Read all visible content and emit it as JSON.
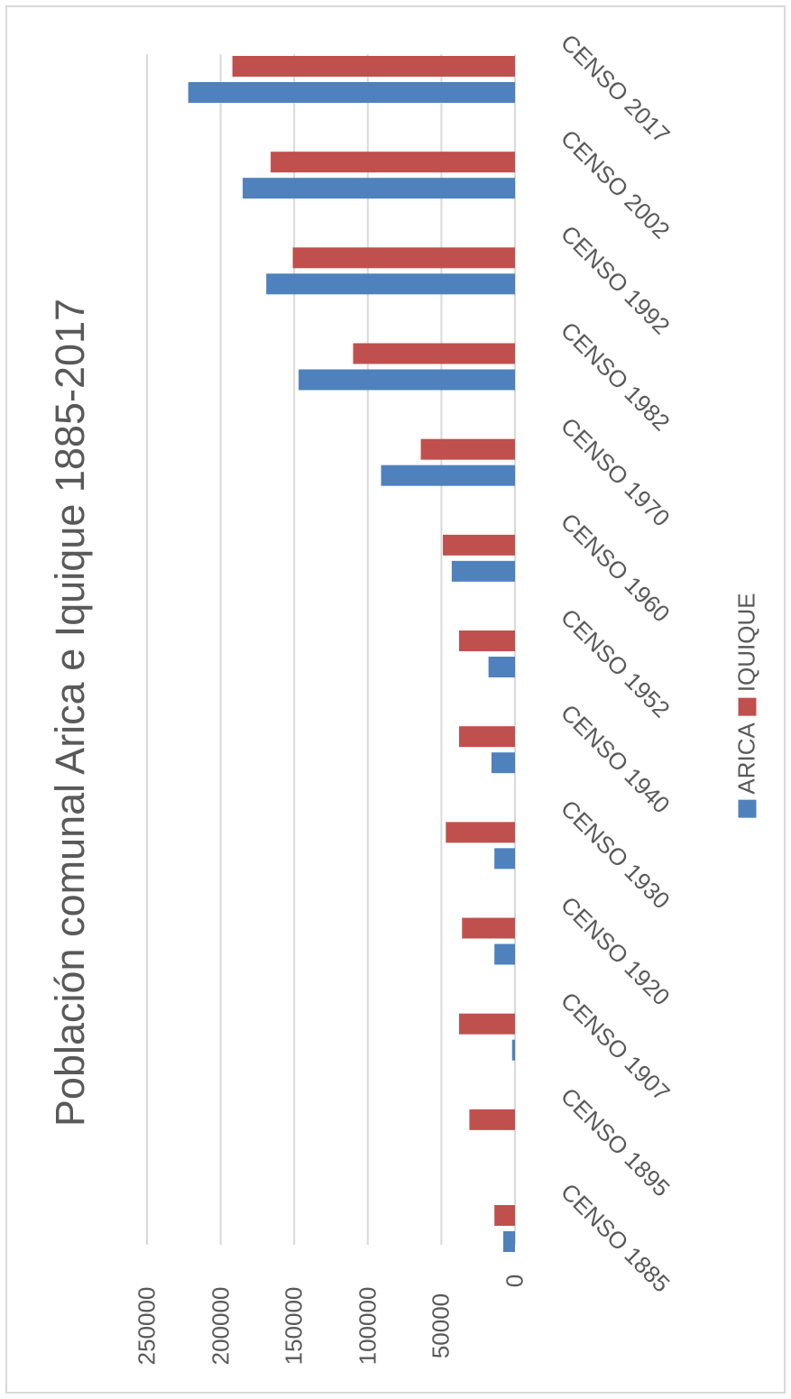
{
  "chart_data": {
    "type": "bar",
    "title": "Población comunal Arica e Iquique 1885-2017",
    "categories": [
      "CENSO 1885",
      "CENSO 1895",
      "CENSO 1907",
      "CENSO 1920",
      "CENSO 1930",
      "CENSO 1940",
      "CENSO 1952",
      "CENSO 1960",
      "CENSO 1970",
      "CENSO 1982",
      "CENSO 1992",
      "CENSO 2002",
      "CENSO 2017"
    ],
    "series": [
      {
        "name": "ARICA",
        "color": "#4f81bd",
        "values": [
          8000,
          0,
          2000,
          14000,
          14000,
          16000,
          18000,
          43000,
          91000,
          147000,
          169000,
          185000,
          222000
        ]
      },
      {
        "name": "IQUIQUE",
        "color": "#c0504d",
        "values": [
          14000,
          31000,
          38000,
          36000,
          47000,
          38000,
          38000,
          49000,
          64000,
          110000,
          151000,
          166000,
          192000
        ]
      }
    ],
    "yticks": [
      "0",
      "50000",
      "100000",
      "150000",
      "200000",
      "250000"
    ],
    "ylim": [
      0,
      250000
    ],
    "grid": true,
    "legend_position": "bottom"
  }
}
